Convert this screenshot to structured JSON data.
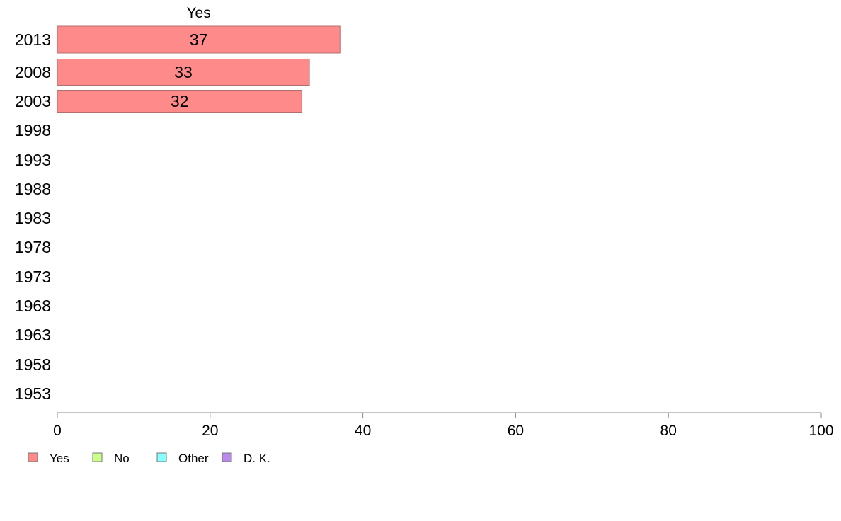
{
  "chart_data": {
    "type": "bar",
    "orientation": "horizontal",
    "categories": [
      "2013",
      "2008",
      "2003",
      "1998",
      "1993",
      "1988",
      "1983",
      "1978",
      "1973",
      "1968",
      "1963",
      "1958",
      "1953"
    ],
    "series": [
      {
        "name": "Yes",
        "color": "#ff8a8a",
        "values": [
          37,
          33,
          32,
          null,
          null,
          null,
          null,
          null,
          null,
          null,
          null,
          null,
          null
        ]
      },
      {
        "name": "No",
        "color": "#ccff88",
        "values": [
          null,
          null,
          null,
          null,
          null,
          null,
          null,
          null,
          null,
          null,
          null,
          null,
          null
        ]
      },
      {
        "name": "Other",
        "color": "#88ffff",
        "values": [
          null,
          null,
          null,
          null,
          null,
          null,
          null,
          null,
          null,
          null,
          null,
          null,
          null
        ]
      },
      {
        "name": "D. K.",
        "color": "#bb88ee",
        "values": [
          null,
          null,
          null,
          null,
          null,
          null,
          null,
          null,
          null,
          null,
          null,
          null,
          null
        ]
      }
    ],
    "column_header": "Yes",
    "xlim": [
      0,
      100
    ],
    "xticks": [
      0,
      20,
      40,
      60,
      80,
      100
    ],
    "title": "",
    "xlabel": "",
    "ylabel": "",
    "grid": false,
    "legend_position": "bottom-left"
  }
}
